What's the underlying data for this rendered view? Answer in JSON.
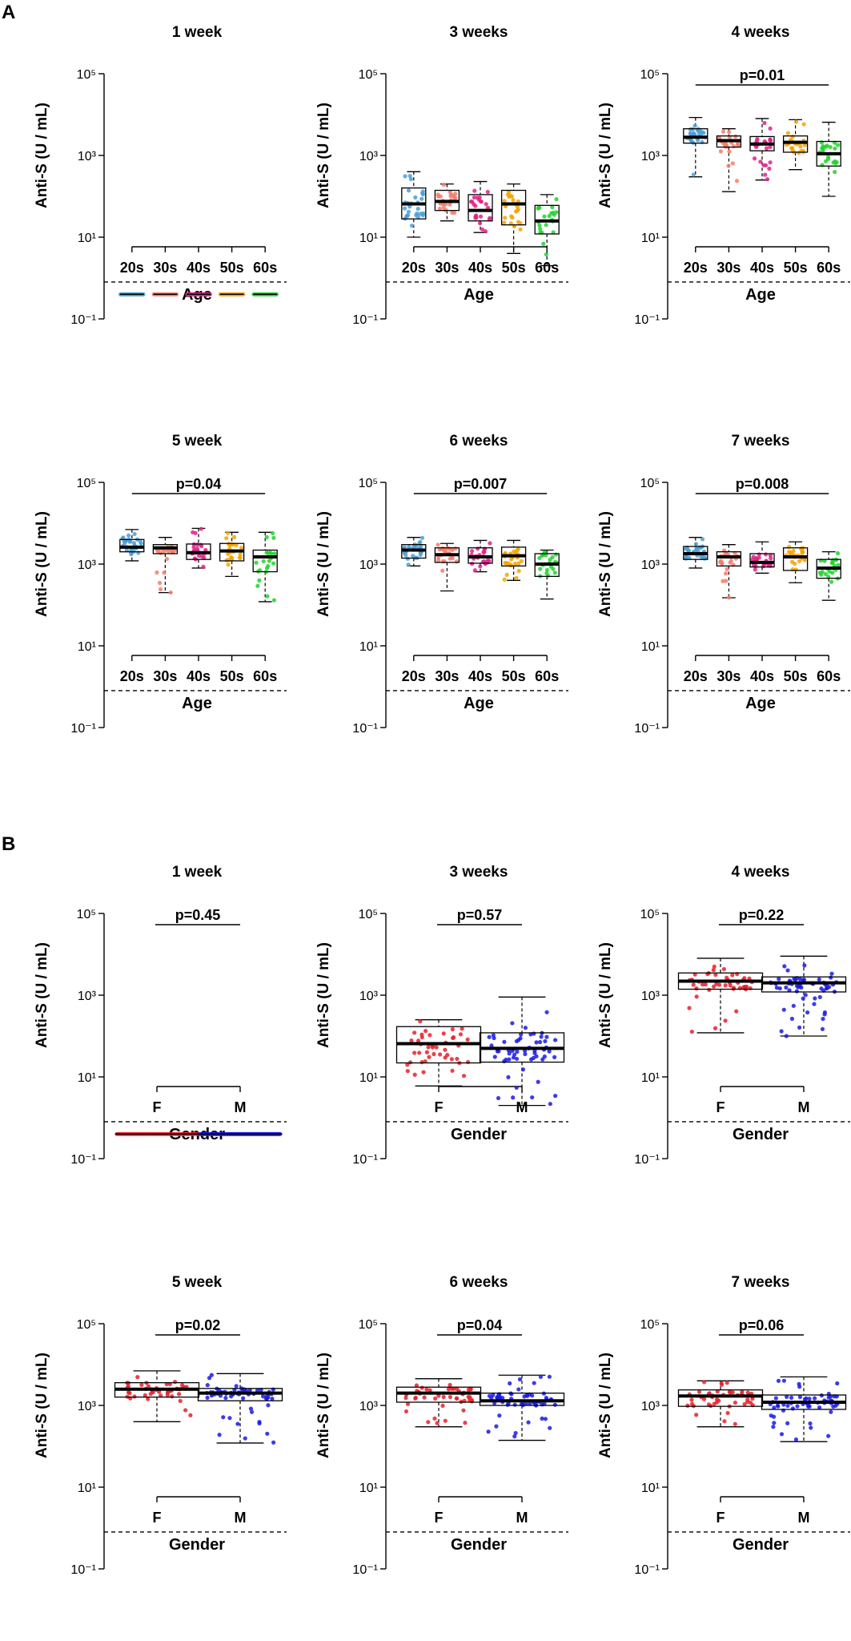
{
  "panels": [
    {
      "letter": "A"
    },
    {
      "letter": "B"
    }
  ],
  "styles": {
    "dashed_line_color": "#000000",
    "box_stroke": "#000000"
  },
  "chart_data": [
    {
      "type": "boxplot",
      "panel": "A",
      "title": "1 week",
      "xlabel": "Age",
      "ylabel": "Anti-S (U / mL)",
      "yscale": "log10",
      "ylim": [
        0.1,
        100000
      ],
      "yticks": [
        {
          "e": 5,
          "label": "10⁵"
        },
        {
          "e": 3,
          "label": "10³"
        },
        {
          "e": 1,
          "label": "10¹"
        },
        {
          "e": -1,
          "label": "10⁻¹"
        }
      ],
      "cutoff": 0.8,
      "pvalue": null,
      "groups": [
        {
          "name": "20s",
          "color": "#4a9fd6",
          "min": 0.4,
          "q1": 0.4,
          "median": 0.4,
          "q3": 0.4,
          "max": 0.4,
          "points": 28,
          "spread": 0.0
        },
        {
          "name": "30s",
          "color": "#f47c6a",
          "min": 0.4,
          "q1": 0.4,
          "median": 0.4,
          "q3": 0.4,
          "max": 0.4,
          "points": 24,
          "spread": 0.0
        },
        {
          "name": "40s",
          "color": "#e0218a",
          "min": 0.4,
          "q1": 0.4,
          "median": 0.4,
          "q3": 0.4,
          "max": 0.4,
          "points": 24,
          "spread": 0.0
        },
        {
          "name": "50s",
          "color": "#f5a300",
          "min": 0.4,
          "q1": 0.4,
          "median": 0.4,
          "q3": 0.4,
          "max": 0.4,
          "points": 24,
          "spread": 0.0
        },
        {
          "name": "60s",
          "color": "#22d22e",
          "min": 0.4,
          "q1": 0.4,
          "median": 0.4,
          "q3": 0.4,
          "max": 0.4,
          "points": 22,
          "spread": 0.0
        }
      ]
    },
    {
      "type": "boxplot",
      "panel": "A",
      "title": "3 weeks",
      "xlabel": "Age",
      "ylabel": "Anti-S (U / mL)",
      "yscale": "log10",
      "ylim": [
        0.1,
        100000
      ],
      "yticks": [
        {
          "e": 5,
          "label": "10⁵"
        },
        {
          "e": 3,
          "label": "10³"
        },
        {
          "e": 1,
          "label": "10¹"
        },
        {
          "e": -1,
          "label": "10⁻¹"
        }
      ],
      "cutoff": 0.8,
      "pvalue": null,
      "groups": [
        {
          "name": "20s",
          "color": "#4a9fd6",
          "min": 10,
          "q1": 28,
          "median": 65,
          "q3": 160,
          "max": 400,
          "points": 28,
          "spread": 0.5
        },
        {
          "name": "30s",
          "color": "#f47c6a",
          "min": 25,
          "q1": 45,
          "median": 75,
          "q3": 140,
          "max": 200,
          "points": 24,
          "spread": 0.5
        },
        {
          "name": "40s",
          "color": "#e0218a",
          "min": 13,
          "q1": 25,
          "median": 45,
          "q3": 110,
          "max": 230,
          "points": 24,
          "spread": 0.5
        },
        {
          "name": "50s",
          "color": "#f5a300",
          "min": 4,
          "q1": 20,
          "median": 65,
          "q3": 140,
          "max": 200,
          "points": 24,
          "spread": 0.6
        },
        {
          "name": "60s",
          "color": "#22d22e",
          "min": 2,
          "q1": 12,
          "median": 25,
          "q3": 60,
          "max": 110,
          "points": 22,
          "spread": 0.6
        }
      ]
    },
    {
      "type": "boxplot",
      "panel": "A",
      "title": "4 weeks",
      "xlabel": "Age",
      "ylabel": "Anti-S (U / mL)",
      "yscale": "log10",
      "ylim": [
        0.1,
        100000
      ],
      "yticks": [
        {
          "e": 5,
          "label": "10⁵"
        },
        {
          "e": 3,
          "label": "10³"
        },
        {
          "e": 1,
          "label": "10¹"
        },
        {
          "e": -1,
          "label": "10⁻¹"
        }
      ],
      "cutoff": 0.8,
      "pvalue": "p=0.01",
      "groups": [
        {
          "name": "20s",
          "color": "#4a9fd6",
          "min": 300,
          "q1": 2000,
          "median": 2800,
          "q3": 4500,
          "max": 8500,
          "points": 28,
          "spread": 0.4
        },
        {
          "name": "30s",
          "color": "#f47c6a",
          "min": 130,
          "q1": 1600,
          "median": 2300,
          "q3": 3000,
          "max": 4500,
          "points": 24,
          "spread": 0.4
        },
        {
          "name": "40s",
          "color": "#e0218a",
          "min": 250,
          "q1": 1300,
          "median": 1900,
          "q3": 2900,
          "max": 8000,
          "points": 24,
          "spread": 0.45
        },
        {
          "name": "50s",
          "color": "#f5a300",
          "min": 450,
          "q1": 1200,
          "median": 2100,
          "q3": 3000,
          "max": 7500,
          "points": 24,
          "spread": 0.4
        },
        {
          "name": "60s",
          "color": "#22d22e",
          "min": 100,
          "q1": 550,
          "median": 1100,
          "q3": 2200,
          "max": 6500,
          "points": 22,
          "spread": 0.5
        }
      ]
    },
    {
      "type": "boxplot",
      "panel": "A",
      "title": "5 week",
      "xlabel": "Age",
      "ylabel": "Anti-S (U / mL)",
      "yscale": "log10",
      "ylim": [
        0.1,
        100000
      ],
      "yticks": [
        {
          "e": 5,
          "label": "10⁵"
        },
        {
          "e": 3,
          "label": "10³"
        },
        {
          "e": 1,
          "label": "10¹"
        },
        {
          "e": -1,
          "label": "10⁻¹"
        }
      ],
      "cutoff": 0.8,
      "pvalue": "p=0.04",
      "groups": [
        {
          "name": "20s",
          "color": "#4a9fd6",
          "min": 1200,
          "q1": 2000,
          "median": 2600,
          "q3": 4000,
          "max": 7000,
          "points": 28,
          "spread": 0.3
        },
        {
          "name": "30s",
          "color": "#f47c6a",
          "min": 200,
          "q1": 1800,
          "median": 2500,
          "q3": 3000,
          "max": 4500,
          "points": 24,
          "spread": 0.35
        },
        {
          "name": "40s",
          "color": "#e0218a",
          "min": 800,
          "q1": 1300,
          "median": 1900,
          "q3": 3100,
          "max": 7500,
          "points": 24,
          "spread": 0.35
        },
        {
          "name": "50s",
          "color": "#f5a300",
          "min": 500,
          "q1": 1200,
          "median": 2100,
          "q3": 3200,
          "max": 6000,
          "points": 24,
          "spread": 0.35
        },
        {
          "name": "60s",
          "color": "#22d22e",
          "min": 120,
          "q1": 650,
          "median": 1500,
          "q3": 2200,
          "max": 6000,
          "points": 22,
          "spread": 0.45
        }
      ]
    },
    {
      "type": "boxplot",
      "panel": "A",
      "title": "6 weeks",
      "xlabel": "Age",
      "ylabel": "Anti-S (U / mL)",
      "yscale": "log10",
      "ylim": [
        0.1,
        100000
      ],
      "yticks": [
        {
          "e": 5,
          "label": "10⁵"
        },
        {
          "e": 3,
          "label": "10³"
        },
        {
          "e": 1,
          "label": "10¹"
        },
        {
          "e": -1,
          "label": "10⁻¹"
        }
      ],
      "cutoff": 0.8,
      "pvalue": "p=0.007",
      "groups": [
        {
          "name": "20s",
          "color": "#4a9fd6",
          "min": 900,
          "q1": 1400,
          "median": 2200,
          "q3": 3000,
          "max": 4500,
          "points": 28,
          "spread": 0.3
        },
        {
          "name": "30s",
          "color": "#f47c6a",
          "min": 220,
          "q1": 1100,
          "median": 1700,
          "q3": 2500,
          "max": 3200,
          "points": 24,
          "spread": 0.35
        },
        {
          "name": "40s",
          "color": "#e0218a",
          "min": 650,
          "q1": 1050,
          "median": 1500,
          "q3": 2500,
          "max": 3800,
          "points": 24,
          "spread": 0.3
        },
        {
          "name": "50s",
          "color": "#f5a300",
          "min": 400,
          "q1": 900,
          "median": 1600,
          "q3": 2600,
          "max": 3800,
          "points": 24,
          "spread": 0.35
        },
        {
          "name": "60s",
          "color": "#22d22e",
          "min": 140,
          "q1": 500,
          "median": 1000,
          "q3": 1800,
          "max": 2200,
          "points": 22,
          "spread": 0.4
        }
      ]
    },
    {
      "type": "boxplot",
      "panel": "A",
      "title": "7 weeks",
      "xlabel": "Age",
      "ylabel": "Anti-S (U / mL)",
      "yscale": "log10",
      "ylim": [
        0.1,
        100000
      ],
      "yticks": [
        {
          "e": 5,
          "label": "10⁵"
        },
        {
          "e": 3,
          "label": "10³"
        },
        {
          "e": 1,
          "label": "10¹"
        },
        {
          "e": -1,
          "label": "10⁻¹"
        }
      ],
      "cutoff": 0.8,
      "pvalue": "p=0.008",
      "groups": [
        {
          "name": "20s",
          "color": "#4a9fd6",
          "min": 800,
          "q1": 1300,
          "median": 1800,
          "q3": 2700,
          "max": 4500,
          "points": 28,
          "spread": 0.3
        },
        {
          "name": "30s",
          "color": "#f47c6a",
          "min": 150,
          "q1": 900,
          "median": 1500,
          "q3": 2000,
          "max": 3000,
          "points": 24,
          "spread": 0.35
        },
        {
          "name": "40s",
          "color": "#e0218a",
          "min": 600,
          "q1": 850,
          "median": 1100,
          "q3": 1800,
          "max": 3500,
          "points": 24,
          "spread": 0.3
        },
        {
          "name": "50s",
          "color": "#f5a300",
          "min": 350,
          "q1": 700,
          "median": 1500,
          "q3": 2500,
          "max": 3500,
          "points": 24,
          "spread": 0.35
        },
        {
          "name": "60s",
          "color": "#22d22e",
          "min": 130,
          "q1": 450,
          "median": 800,
          "q3": 1300,
          "max": 2000,
          "points": 22,
          "spread": 0.4
        }
      ]
    },
    {
      "type": "boxplot",
      "panel": "B",
      "title": "1 week",
      "xlabel": "Gender",
      "ylabel": "Anti-S (U / mL)",
      "yscale": "log10",
      "ylim": [
        0.1,
        100000
      ],
      "yticks": [
        {
          "e": 5,
          "label": "10⁵"
        },
        {
          "e": 3,
          "label": "10³"
        },
        {
          "e": 1,
          "label": "10¹"
        },
        {
          "e": -1,
          "label": "10⁻¹"
        }
      ],
      "cutoff": 0.8,
      "pvalue": "p=0.45",
      "groups": [
        {
          "name": "F",
          "color": "#e8202a",
          "min": 0.4,
          "q1": 0.4,
          "median": 0.4,
          "q3": 0.4,
          "max": 0.4,
          "points": 45,
          "spread": 0.0
        },
        {
          "name": "M",
          "color": "#1a1ae6",
          "min": 0.4,
          "q1": 0.4,
          "median": 0.4,
          "q3": 0.4,
          "max": 0.4,
          "points": 60,
          "spread": 0.0
        }
      ]
    },
    {
      "type": "boxplot",
      "panel": "B",
      "title": "3 weeks",
      "xlabel": "Gender",
      "ylabel": "Anti-S (U / mL)",
      "yscale": "log10",
      "ylim": [
        0.1,
        100000
      ],
      "yticks": [
        {
          "e": 5,
          "label": "10⁵"
        },
        {
          "e": 3,
          "label": "10³"
        },
        {
          "e": 1,
          "label": "10¹"
        },
        {
          "e": -1,
          "label": "10⁻¹"
        }
      ],
      "cutoff": 0.8,
      "pvalue": "p=0.57",
      "groups": [
        {
          "name": "F",
          "color": "#e8202a",
          "min": 6,
          "q1": 22,
          "median": 65,
          "q3": 170,
          "max": 250,
          "points": 45,
          "spread": 0.55
        },
        {
          "name": "M",
          "color": "#1a1ae6",
          "min": 2,
          "q1": 23,
          "median": 50,
          "q3": 120,
          "max": 900,
          "points": 60,
          "spread": 0.6
        }
      ]
    },
    {
      "type": "boxplot",
      "panel": "B",
      "title": "4 weeks",
      "xlabel": "Gender",
      "ylabel": "Anti-S (U / mL)",
      "yscale": "log10",
      "ylim": [
        0.1,
        100000
      ],
      "yticks": [
        {
          "e": 5,
          "label": "10⁵"
        },
        {
          "e": 3,
          "label": "10³"
        },
        {
          "e": 1,
          "label": "10¹"
        },
        {
          "e": -1,
          "label": "10⁻¹"
        }
      ],
      "cutoff": 0.8,
      "pvalue": "p=0.22",
      "groups": [
        {
          "name": "F",
          "color": "#e8202a",
          "min": 120,
          "q1": 1400,
          "median": 2200,
          "q3": 3500,
          "max": 8000,
          "points": 45,
          "spread": 0.45
        },
        {
          "name": "M",
          "color": "#1a1ae6",
          "min": 100,
          "q1": 1200,
          "median": 2000,
          "q3": 2800,
          "max": 9000,
          "points": 60,
          "spread": 0.45
        }
      ]
    },
    {
      "type": "boxplot",
      "panel": "B",
      "title": "5 week",
      "xlabel": "Gender",
      "ylabel": "Anti-S (U / mL)",
      "yscale": "log10",
      "ylim": [
        0.1,
        100000
      ],
      "yticks": [
        {
          "e": 5,
          "label": "10⁵"
        },
        {
          "e": 3,
          "label": "10³"
        },
        {
          "e": 1,
          "label": "10¹"
        },
        {
          "e": -1,
          "label": "10⁻¹"
        }
      ],
      "cutoff": 0.8,
      "pvalue": "p=0.02",
      "groups": [
        {
          "name": "F",
          "color": "#e8202a",
          "min": 400,
          "q1": 1600,
          "median": 2500,
          "q3": 3600,
          "max": 7000,
          "points": 45,
          "spread": 0.35
        },
        {
          "name": "M",
          "color": "#1a1ae6",
          "min": 120,
          "q1": 1300,
          "median": 2000,
          "q3": 2600,
          "max": 6000,
          "points": 60,
          "spread": 0.4
        }
      ]
    },
    {
      "type": "boxplot",
      "panel": "B",
      "title": "6 weeks",
      "xlabel": "Gender",
      "ylabel": "Anti-S (U / mL)",
      "yscale": "log10",
      "ylim": [
        0.1,
        100000
      ],
      "yticks": [
        {
          "e": 5,
          "label": "10⁵"
        },
        {
          "e": 3,
          "label": "10³"
        },
        {
          "e": 1,
          "label": "10¹"
        },
        {
          "e": -1,
          "label": "10⁻¹"
        }
      ],
      "cutoff": 0.8,
      "pvalue": "p=0.04",
      "groups": [
        {
          "name": "F",
          "color": "#e8202a",
          "min": 300,
          "q1": 1200,
          "median": 2000,
          "q3": 2800,
          "max": 4500,
          "points": 45,
          "spread": 0.35
        },
        {
          "name": "M",
          "color": "#1a1ae6",
          "min": 140,
          "q1": 1000,
          "median": 1300,
          "q3": 2000,
          "max": 5500,
          "points": 60,
          "spread": 0.4
        }
      ]
    },
    {
      "type": "boxplot",
      "panel": "B",
      "title": "7 weeks",
      "xlabel": "Gender",
      "ylabel": "Anti-S (U / mL)",
      "yscale": "log10",
      "ylim": [
        0.1,
        100000
      ],
      "yticks": [
        {
          "e": 5,
          "label": "10⁵"
        },
        {
          "e": 3,
          "label": "10³"
        },
        {
          "e": 1,
          "label": "10¹"
        },
        {
          "e": -1,
          "label": "10⁻¹"
        }
      ],
      "cutoff": 0.8,
      "pvalue": "p=0.06",
      "groups": [
        {
          "name": "F",
          "color": "#e8202a",
          "min": 300,
          "q1": 950,
          "median": 1700,
          "q3": 2400,
          "max": 4000,
          "points": 45,
          "spread": 0.35
        },
        {
          "name": "M",
          "color": "#1a1ae6",
          "min": 130,
          "q1": 800,
          "median": 1200,
          "q3": 1800,
          "max": 5000,
          "points": 60,
          "spread": 0.4
        }
      ]
    }
  ]
}
